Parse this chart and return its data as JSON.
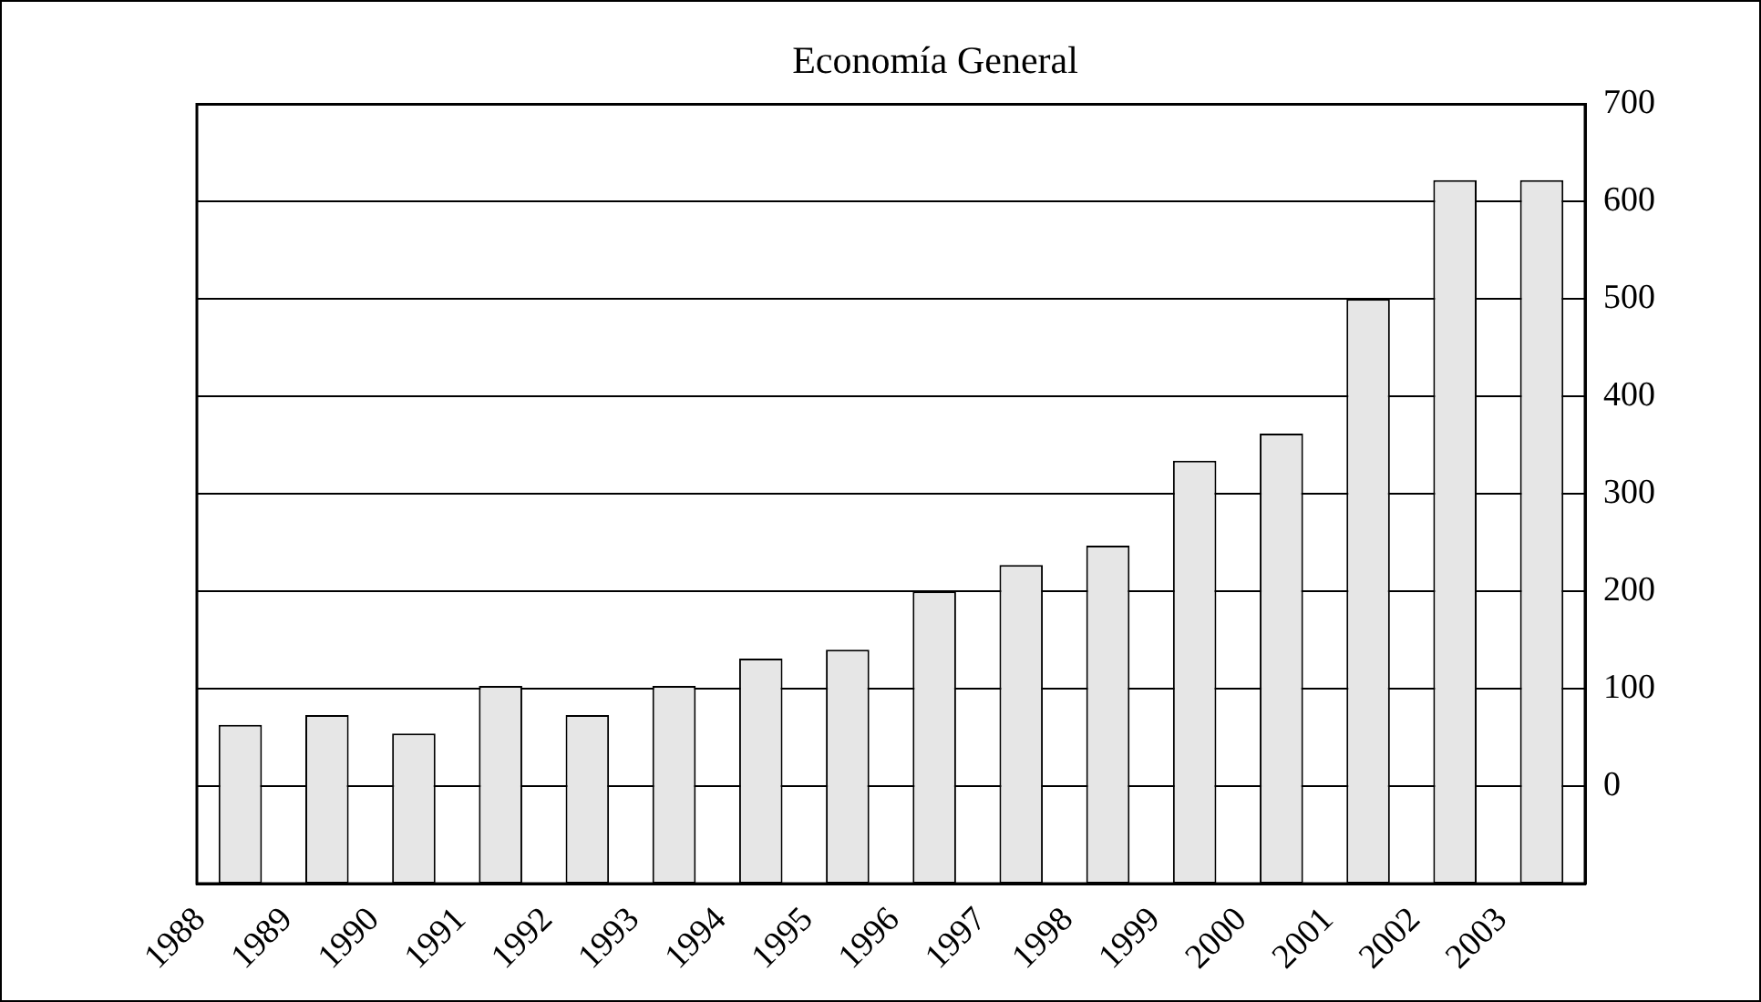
{
  "chart_data": {
    "type": "bar",
    "title": "Economía General",
    "categories": [
      "1988",
      "1989",
      "1990",
      "1991",
      "1992",
      "1993",
      "1994",
      "1995",
      "1996",
      "1997",
      "1998",
      "1999",
      "2000",
      "2001",
      "2002",
      "2003"
    ],
    "base": [
      -100,
      -100,
      -100,
      -100,
      -100,
      -100,
      -100,
      -100,
      -100,
      -100,
      -100,
      -100,
      -100,
      -100,
      -100,
      -100
    ],
    "values": [
      163,
      173,
      154,
      203,
      173,
      203,
      231,
      240,
      300,
      327,
      347,
      434,
      462,
      600,
      722,
      722
    ],
    "color": "#e6e6e6",
    "ylim": [
      -100,
      700
    ],
    "yticks": [
      0,
      100,
      200,
      300,
      400,
      500,
      600,
      700
    ],
    "grid": "y",
    "legend": false
  }
}
